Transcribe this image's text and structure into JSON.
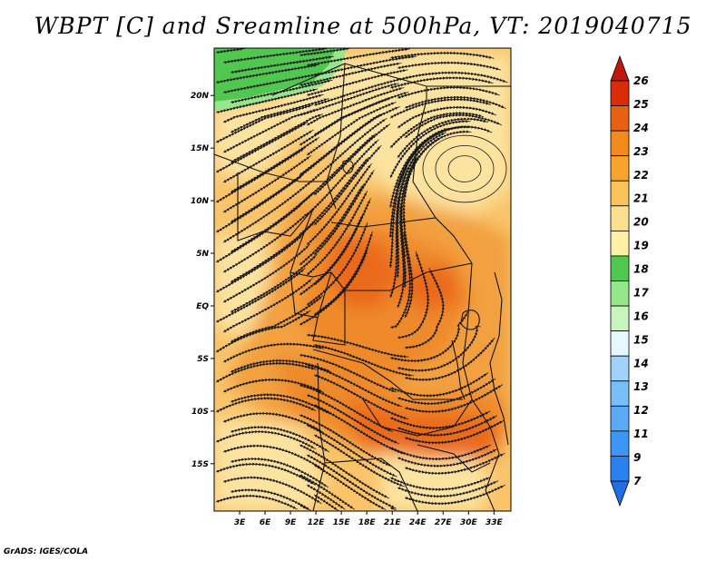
{
  "title": "WBPT [C] and Sreamline at 500hPa, VT: 2019040715",
  "credit": "GrADS: IGES/COLA",
  "map": {
    "lat_labels": [
      "20N",
      "15N",
      "10N",
      "5N",
      "EQ",
      "5S",
      "10S",
      "15S"
    ],
    "lon_labels": [
      "3E",
      "6E",
      "9E",
      "12E",
      "15E",
      "18E",
      "21E",
      "24E",
      "27E",
      "30E",
      "33E"
    ],
    "lat_values": [
      20,
      15,
      10,
      5,
      0,
      -5,
      -10,
      -15
    ],
    "lon_values": [
      3,
      6,
      9,
      12,
      15,
      18,
      21,
      24,
      27,
      30,
      33
    ],
    "lat_range": [
      -19.5,
      24.5
    ],
    "lon_range": [
      0,
      35
    ]
  },
  "colorbar": {
    "labels": [
      "7",
      "9",
      "11",
      "12",
      "13",
      "14",
      "15",
      "16",
      "17",
      "18",
      "19",
      "20",
      "21",
      "22",
      "23",
      "24",
      "25",
      "26"
    ],
    "colors": [
      "#1e6ee6",
      "#2a82f0",
      "#3c96f5",
      "#5aaaf5",
      "#78bef7",
      "#a0d2fa",
      "#e6f8ff",
      "#c8f5be",
      "#96e68c",
      "#50c850",
      "#fff0a8",
      "#fce08e",
      "#f9c45a",
      "#f7a32e",
      "#f28a1c",
      "#e86012",
      "#d92d0a",
      "#c0160e"
    ]
  },
  "field_colors": {
    "green": "#50c850",
    "light_green": "#96e68c",
    "pale_yellow": "#fce3a0",
    "tan": "#f9c46a",
    "orange": "#f2a040",
    "dark_orange": "#ef8a2a",
    "red_orange": "#ea6a1a"
  }
}
